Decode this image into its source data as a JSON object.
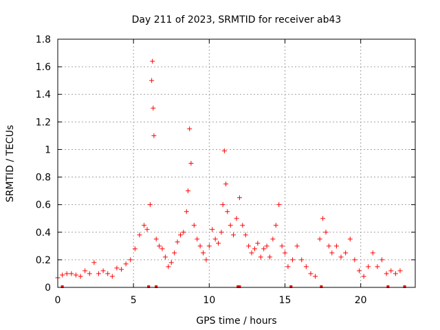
{
  "chart_data": {
    "type": "scatter",
    "title": "Day 211 of 2023, SRMTID for receiver ab43",
    "xlabel": "GPS time / hours",
    "ylabel": "SRMTID / TECUs",
    "xlim": [
      0,
      23.6
    ],
    "ylim": [
      0,
      1.8
    ],
    "xticks": [
      0,
      5,
      10,
      15,
      20
    ],
    "xtick_labels": [
      "0",
      "5",
      "10",
      "15",
      "20"
    ],
    "yticks": [
      0,
      0.2,
      0.4,
      0.6,
      0.8,
      1,
      1.2,
      1.4,
      1.6,
      1.8
    ],
    "ytick_labels": [
      "0",
      "0.2",
      "0.4",
      "0.6",
      "0.8",
      "1",
      "1.2",
      "1.4",
      "1.6",
      "1.8"
    ],
    "grid": true,
    "marker": "plus",
    "series_color": "#ff0000",
    "series": [
      {
        "name": "SRMTID",
        "x": [
          0.0,
          0.3,
          0.6,
          0.9,
          1.2,
          1.5,
          1.8,
          2.1,
          2.4,
          2.7,
          3.0,
          3.3,
          3.6,
          3.9,
          4.2,
          4.5,
          4.8,
          5.1,
          5.4,
          5.7,
          5.9,
          6.1,
          6.2,
          6.25,
          6.3,
          6.35,
          6.5,
          6.7,
          6.9,
          7.1,
          7.3,
          7.5,
          7.7,
          7.9,
          8.1,
          8.3,
          8.5,
          8.6,
          8.7,
          8.8,
          9.0,
          9.2,
          9.4,
          9.6,
          9.8,
          10.0,
          10.2,
          10.4,
          10.6,
          10.8,
          10.9,
          11.0,
          11.1,
          11.2,
          11.4,
          11.6,
          11.8,
          12.0,
          12.2,
          12.4,
          12.6,
          12.8,
          13.0,
          13.2,
          13.4,
          13.6,
          13.8,
          14.0,
          14.2,
          14.4,
          14.6,
          14.8,
          15.0,
          15.2,
          15.5,
          15.8,
          16.1,
          16.4,
          16.7,
          17.0,
          17.3,
          17.5,
          17.7,
          17.9,
          18.1,
          18.4,
          18.7,
          19.0,
          19.3,
          19.6,
          19.9,
          20.2,
          20.5,
          20.8,
          21.1,
          21.4,
          21.7,
          22.0,
          22.3,
          22.6
        ],
        "y": [
          0.07,
          0.09,
          0.1,
          0.1,
          0.09,
          0.08,
          0.12,
          0.1,
          0.18,
          0.1,
          0.12,
          0.1,
          0.08,
          0.14,
          0.13,
          0.17,
          0.2,
          0.28,
          0.38,
          0.45,
          0.42,
          0.6,
          1.5,
          1.64,
          1.3,
          1.1,
          0.35,
          0.3,
          0.28,
          0.22,
          0.15,
          0.18,
          0.25,
          0.33,
          0.38,
          0.4,
          0.55,
          0.7,
          1.15,
          0.9,
          0.45,
          0.35,
          0.3,
          0.25,
          0.2,
          0.3,
          0.42,
          0.35,
          0.32,
          0.4,
          0.6,
          0.99,
          0.75,
          0.55,
          0.45,
          0.38,
          0.5,
          0.65,
          0.45,
          0.38,
          0.3,
          0.25,
          0.28,
          0.32,
          0.22,
          0.28,
          0.3,
          0.22,
          0.35,
          0.45,
          0.6,
          0.3,
          0.25,
          0.15,
          0.2,
          0.3,
          0.2,
          0.15,
          0.1,
          0.08,
          0.35,
          0.5,
          0.4,
          0.3,
          0.25,
          0.3,
          0.22,
          0.25,
          0.35,
          0.2,
          0.12,
          0.08,
          0.15,
          0.25,
          0.15,
          0.2,
          0.1,
          0.12,
          0.1,
          0.12
        ]
      }
    ],
    "bottom_markers_x": [
      0.3,
      6.0,
      6.5,
      11.9,
      12.0,
      15.4,
      17.4,
      21.8,
      22.9
    ]
  }
}
